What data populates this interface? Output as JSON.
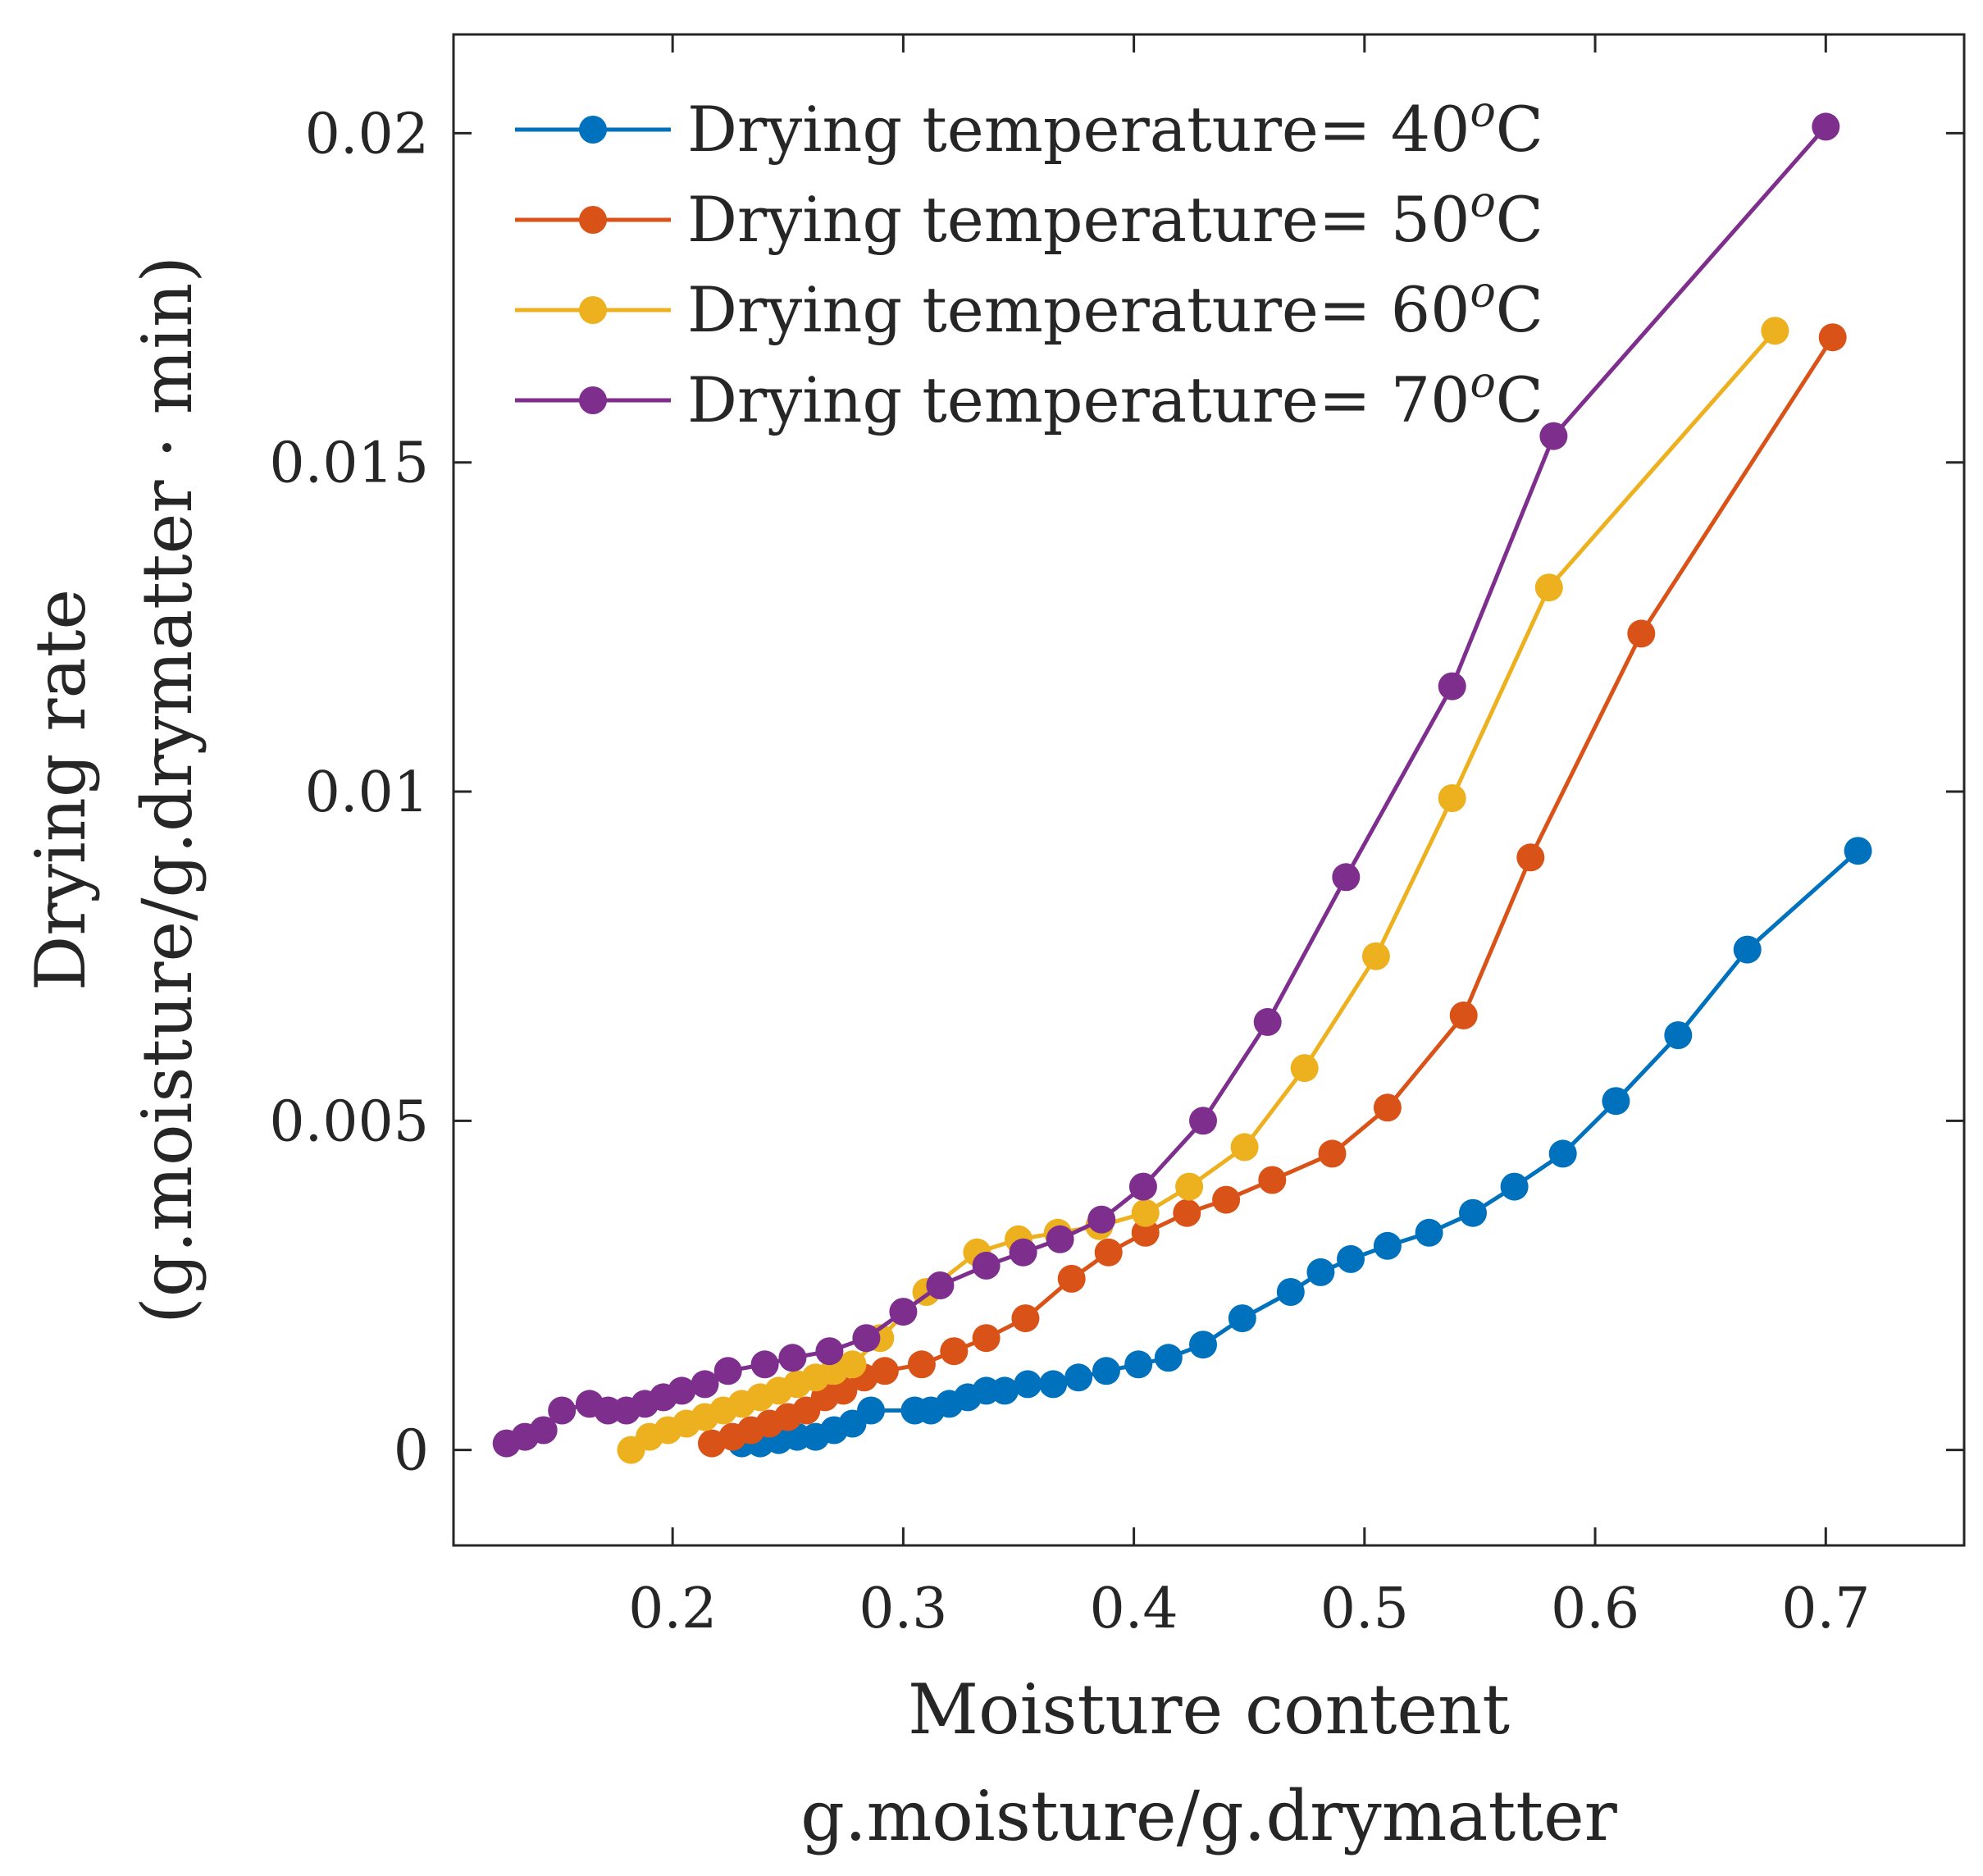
{
  "chart_data": {
    "type": "line",
    "xlabel_line1": "Moisture content",
    "xlabel_line2": "g.moisture/g.drymatter",
    "ylabel_line1": "Drying rate",
    "ylabel_line2": "(g.moisture/g.drymatter · min)",
    "xlim": [
      0.105,
      0.76
    ],
    "ylim": [
      -0.00145,
      0.0215
    ],
    "xticks": [
      0.2,
      0.3,
      0.4,
      0.5,
      0.6,
      0.7
    ],
    "xtick_labels": [
      "0.2",
      "0.3",
      "0.4",
      "0.5",
      "0.6",
      "0.7"
    ],
    "yticks": [
      0,
      0.005,
      0.01,
      0.015,
      0.02
    ],
    "ytick_labels": [
      "0",
      "0.005",
      "0.01",
      "0.015",
      "0.02"
    ],
    "grid": false,
    "legend_position": "top-left",
    "series": [
      {
        "name": "Drying temperature= 40",
        "name_sup": "o",
        "name_unit": "C",
        "color": "#0072BD",
        "x": [
          0.23,
          0.238,
          0.246,
          0.254,
          0.262,
          0.27,
          0.278,
          0.286,
          0.305,
          0.312,
          0.32,
          0.328,
          0.336,
          0.344,
          0.354,
          0.365,
          0.376,
          0.388,
          0.402,
          0.415,
          0.43,
          0.447,
          0.468,
          0.481,
          0.494,
          0.51,
          0.528,
          0.547,
          0.565,
          0.586,
          0.609,
          0.636,
          0.666,
          0.714
        ],
        "y": [
          0.0001,
          0.0001,
          0.00015,
          0.0002,
          0.0002,
          0.0003,
          0.0004,
          0.0006,
          0.0006,
          0.0006,
          0.0007,
          0.0008,
          0.0009,
          0.0009,
          0.001,
          0.001,
          0.0011,
          0.0012,
          0.0013,
          0.0014,
          0.0016,
          0.002,
          0.0024,
          0.0027,
          0.0029,
          0.0031,
          0.0033,
          0.0036,
          0.004,
          0.0045,
          0.0053,
          0.0063,
          0.0076,
          0.0091
        ]
      },
      {
        "name": "Drying temperature= 50",
        "name_sup": "o",
        "name_unit": "C",
        "color": "#D95319",
        "x": [
          0.217,
          0.226,
          0.234,
          0.242,
          0.25,
          0.258,
          0.266,
          0.274,
          0.283,
          0.292,
          0.308,
          0.322,
          0.336,
          0.353,
          0.373,
          0.389,
          0.405,
          0.423,
          0.44,
          0.46,
          0.486,
          0.51,
          0.543,
          0.572,
          0.62,
          0.703
        ],
        "y": [
          0.0001,
          0.0002,
          0.0003,
          0.0004,
          0.0005,
          0.0006,
          0.0008,
          0.0009,
          0.0011,
          0.0012,
          0.0013,
          0.0015,
          0.0017,
          0.002,
          0.0026,
          0.003,
          0.0033,
          0.0036,
          0.0038,
          0.0041,
          0.0045,
          0.0052,
          0.0066,
          0.009,
          0.0124,
          0.0169
        ]
      },
      {
        "name": "Drying temperature= 60",
        "name_sup": "o",
        "name_unit": "C",
        "color": "#EDB120",
        "x": [
          0.182,
          0.19,
          0.198,
          0.206,
          0.214,
          0.222,
          0.23,
          0.238,
          0.246,
          0.254,
          0.262,
          0.27,
          0.278,
          0.29,
          0.31,
          0.332,
          0.35,
          0.367,
          0.385,
          0.405,
          0.424,
          0.448,
          0.474,
          0.505,
          0.538,
          0.58,
          0.678
        ],
        "y": [
          0.0,
          0.0002,
          0.0003,
          0.0004,
          0.0005,
          0.0006,
          0.0007,
          0.0008,
          0.0009,
          0.001,
          0.0011,
          0.0012,
          0.0013,
          0.0017,
          0.0024,
          0.003,
          0.0032,
          0.0033,
          0.0034,
          0.0036,
          0.004,
          0.0046,
          0.0058,
          0.0075,
          0.0099,
          0.0131,
          0.017
        ]
      },
      {
        "name": "Drying temperature= 70",
        "name_sup": "o",
        "name_unit": "C",
        "color": "#7E2F8E",
        "x": [
          0.128,
          0.136,
          0.144,
          0.152,
          0.164,
          0.172,
          0.18,
          0.188,
          0.196,
          0.204,
          0.214,
          0.224,
          0.24,
          0.252,
          0.268,
          0.284,
          0.3,
          0.316,
          0.336,
          0.352,
          0.368,
          0.386,
          0.404,
          0.43,
          0.458,
          0.492,
          0.538,
          0.582,
          0.7
        ],
        "y": [
          0.0001,
          0.0002,
          0.0003,
          0.0006,
          0.0007,
          0.0006,
          0.0006,
          0.0007,
          0.0008,
          0.0009,
          0.001,
          0.0012,
          0.0013,
          0.0014,
          0.0015,
          0.0017,
          0.0021,
          0.0025,
          0.0028,
          0.003,
          0.0032,
          0.0035,
          0.004,
          0.005,
          0.0065,
          0.0087,
          0.0116,
          0.0154,
          0.0201
        ]
      }
    ]
  }
}
